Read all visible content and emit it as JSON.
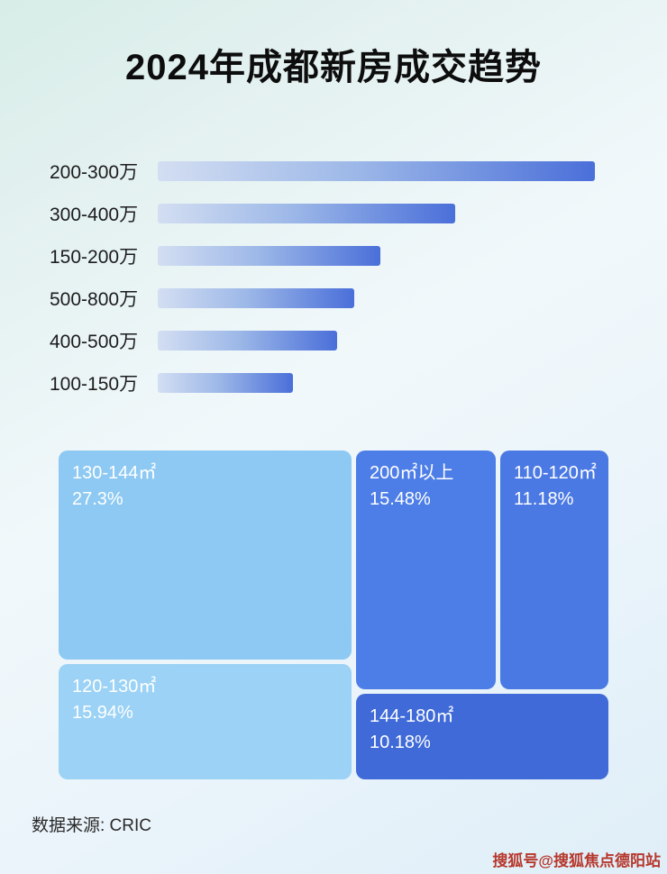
{
  "page": {
    "title": "2024年成都新房成交趋势",
    "source_text": "数据来源: CRIC",
    "watermark": "搜狐号@搜狐焦点德阳站"
  },
  "colors": {
    "background_top": "#d7ede7",
    "background_bottom": "#dfeef8",
    "bar_gradient_start": "#d3def2",
    "bar_gradient_end": "#4a6fd9",
    "treemap_light_blue": "#8dc9f2",
    "treemap_lighter_blue": "#9bd2f5",
    "treemap_medium_blue": "#4d7de7",
    "treemap_dark_blue": "#3f6ad8",
    "watermark_red": "#b6372b"
  },
  "chart_data": [
    {
      "type": "bar",
      "orientation": "horizontal",
      "title": "2024年成都新房成交趋势",
      "categories": [
        "200-300万",
        "300-400万",
        "150-200万",
        "500-800万",
        "400-500万",
        "100-150万"
      ],
      "values": [
        100,
        68,
        51,
        45,
        41,
        31
      ],
      "value_note": "relative bar lengths estimated from pixels; chart shows no numeric labels",
      "xlabel": "",
      "ylabel": "",
      "grid": false,
      "legend": false
    },
    {
      "type": "treemap",
      "title": "",
      "blocks": [
        {
          "label": "130-144㎡",
          "percent_label": "27.3%",
          "value": 27.3
        },
        {
          "label": "200㎡以上",
          "percent_label": "15.48%",
          "value": 15.48
        },
        {
          "label": "110-120㎡",
          "percent_label": "11.18%",
          "value": 11.18
        },
        {
          "label": "120-130㎡",
          "percent_label": "15.94%",
          "value": 15.94
        },
        {
          "label": "144-180㎡",
          "percent_label": "10.18%",
          "value": 10.18
        }
      ]
    }
  ]
}
